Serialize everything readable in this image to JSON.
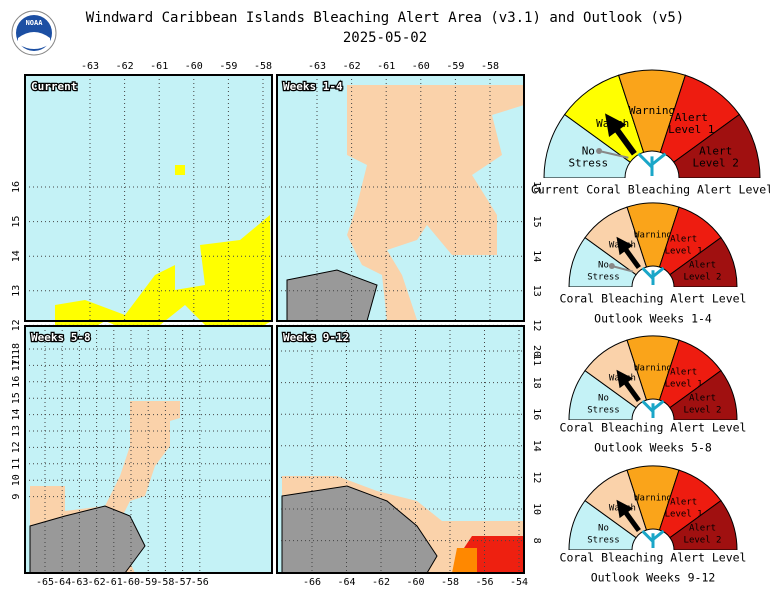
{
  "header": {
    "title": "Windward Caribbean Islands Bleaching Alert Area (v3.1) and Outlook (v5)",
    "date": "2025-05-02"
  },
  "panels": [
    {
      "label": "Current",
      "ticks": {
        "top": [
          -63,
          -62,
          -61,
          -60,
          -59,
          -58
        ],
        "left": [
          16,
          15,
          14,
          13,
          12,
          11
        ]
      }
    },
    {
      "label": "Weeks 1-4",
      "ticks": {
        "top": [
          -63,
          -62,
          -61,
          -60,
          -59,
          -58
        ],
        "right": [
          16,
          15,
          14,
          13,
          12,
          11
        ]
      }
    },
    {
      "label": "Weeks 5-8",
      "ticks": {
        "left": [
          18,
          17,
          16,
          15,
          14,
          13,
          12,
          11,
          10,
          9
        ],
        "bottom": [
          -65,
          -64,
          -63,
          -62,
          -61,
          -60,
          -59,
          -58,
          -57,
          -56
        ]
      }
    },
    {
      "label": "Weeks 9-12",
      "ticks": {
        "right": [
          20,
          18,
          16,
          14,
          12,
          10,
          8
        ],
        "bottom": [
          -66,
          -64,
          -62,
          -60,
          -58,
          -56,
          -54
        ]
      }
    }
  ],
  "levels": [
    [
      "No",
      "Stress"
    ],
    [
      "Watch"
    ],
    [
      "Warning"
    ],
    [
      "Alert",
      "Level 1"
    ],
    [
      "Alert",
      "Level 2"
    ]
  ],
  "gauges": [
    {
      "caption": [
        "Current Coral Bleaching Alert Level"
      ]
    },
    {
      "caption": [
        "Coral Bleaching Alert Level",
        "Outlook Weeks 1-4"
      ]
    },
    {
      "caption": [
        "Coral Bleaching Alert Level",
        "Outlook Weeks 5-8"
      ]
    },
    {
      "caption": [
        "Coral Bleaching Alert Level",
        "Outlook Weeks 9-12"
      ]
    }
  ]
}
